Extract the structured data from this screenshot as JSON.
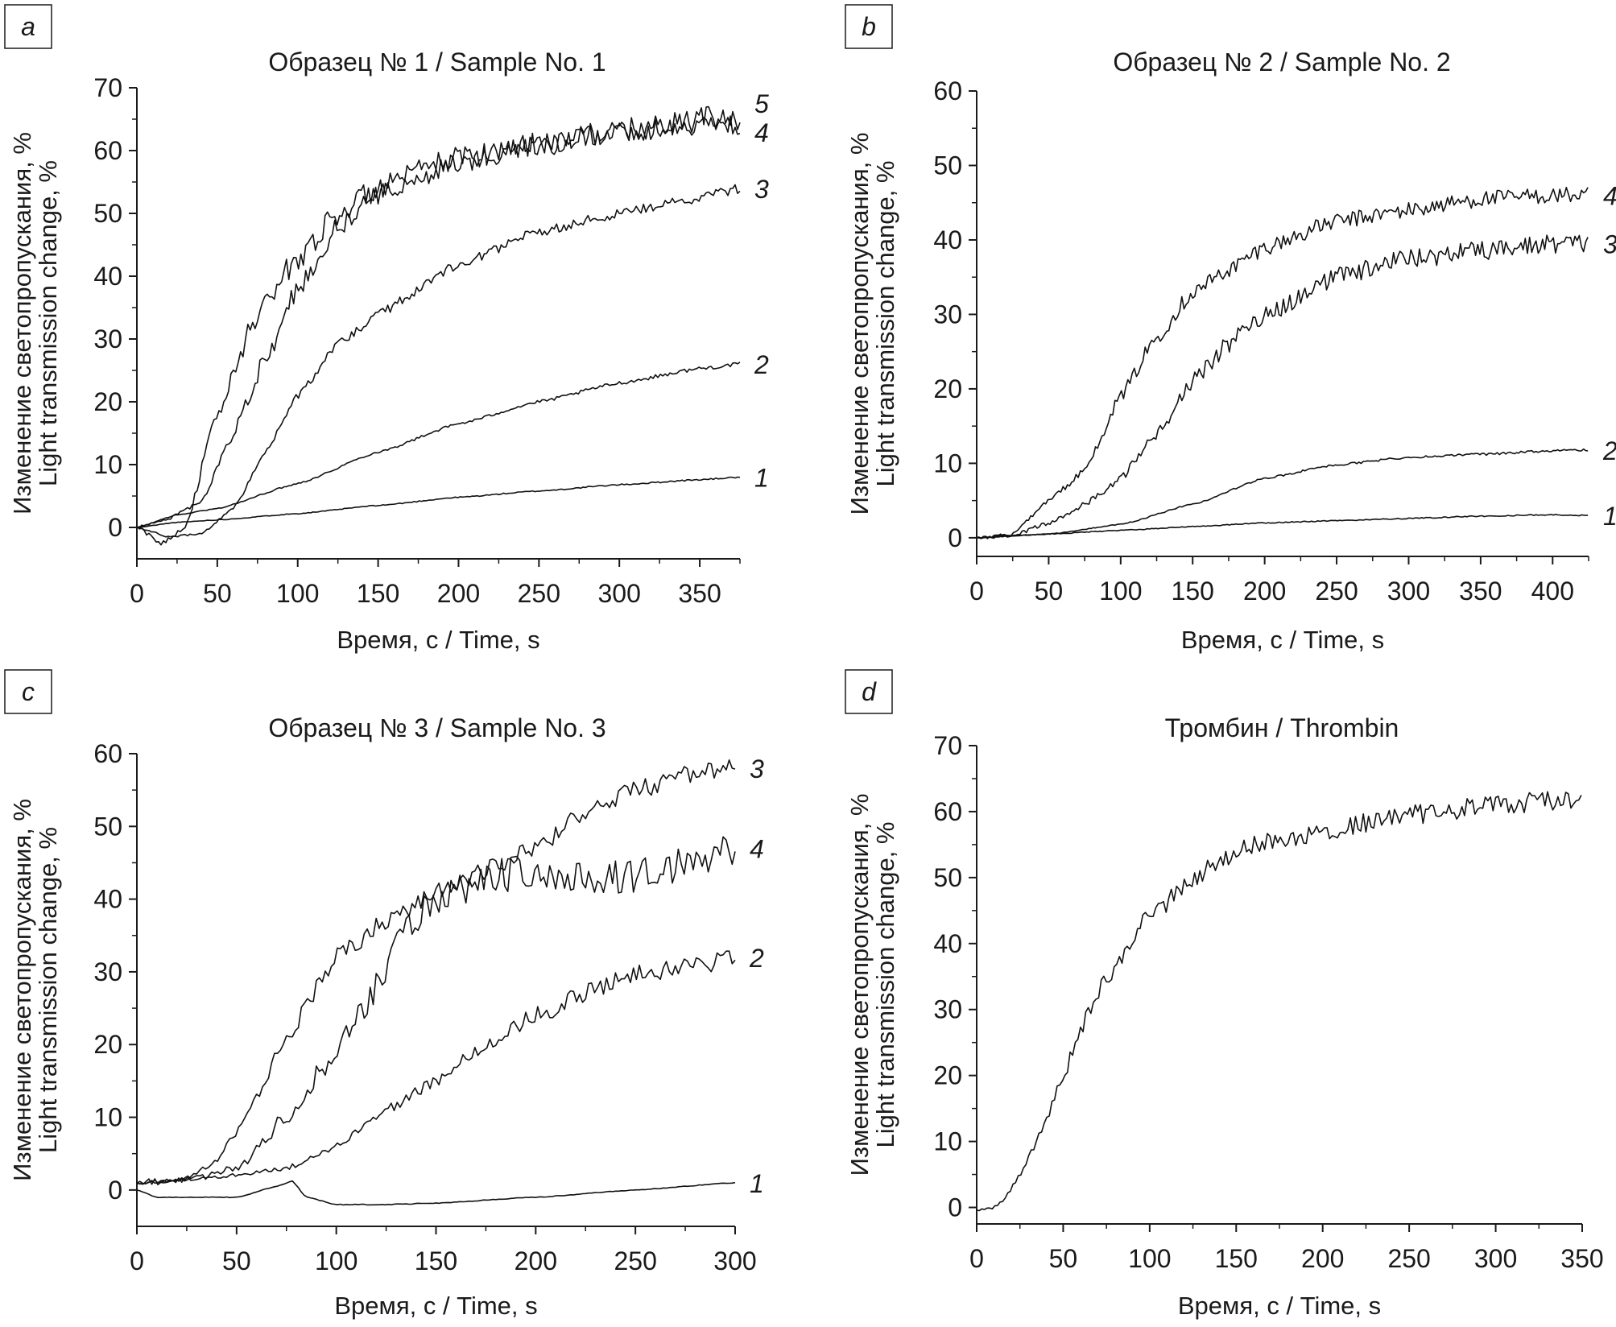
{
  "figure": {
    "panels": [
      "a",
      "b",
      "c",
      "d"
    ]
  },
  "chart_data": [
    {
      "id": "a",
      "type": "line",
      "panel_letter": "a",
      "title": "Образец № 1 / Sample No. 1",
      "xlabel": "Время, с / Time, s",
      "ylabel_line1": "Изменение светопропускания, %",
      "ylabel_line2": "Light transmission change, %",
      "xlim": [
        0,
        375
      ],
      "ylim": [
        -5,
        70
      ],
      "xticks": [
        0,
        50,
        100,
        150,
        200,
        250,
        300,
        350
      ],
      "yticks": [
        0,
        10,
        20,
        30,
        40,
        50,
        60,
        70
      ],
      "grid": false,
      "series": [
        {
          "name": "1",
          "x": [
            0,
            25,
            50,
            100,
            150,
            200,
            250,
            300,
            350,
            375
          ],
          "y": [
            0,
            0.8,
            1.2,
            2.2,
            3.5,
            4.8,
            5.8,
            6.8,
            7.6,
            8
          ],
          "noise": 0.3
        },
        {
          "name": "2",
          "x": [
            0,
            25,
            50,
            100,
            150,
            200,
            250,
            300,
            350,
            375
          ],
          "y": [
            0,
            2,
            3,
            7,
            12,
            16.5,
            20,
            23,
            25.3,
            26
          ],
          "noise": 0.35
        },
        {
          "name": "3",
          "x": [
            0,
            20,
            40,
            60,
            80,
            100,
            125,
            150,
            200,
            250,
            300,
            350,
            375
          ],
          "y": [
            0,
            -1.5,
            -1,
            3,
            12,
            21,
            29,
            34,
            42,
            47,
            50,
            52.5,
            54
          ],
          "noise": 0.8
        },
        {
          "name": "4",
          "x": [
            0,
            20,
            40,
            60,
            80,
            100,
            125,
            150,
            200,
            250,
            300,
            350,
            375
          ],
          "y": [
            0,
            1.5,
            4,
            15,
            27,
            38,
            48,
            53,
            58,
            61,
            63,
            64,
            64
          ],
          "noise": 1.6
        },
        {
          "name": "5",
          "x": [
            0,
            15,
            30,
            50,
            75,
            100,
            125,
            150,
            200,
            250,
            300,
            350,
            375
          ],
          "y": [
            0,
            -2.5,
            0,
            18,
            34,
            43,
            50,
            54,
            59,
            61,
            63,
            65,
            65
          ],
          "noise": 2.0
        }
      ]
    },
    {
      "id": "b",
      "type": "line",
      "panel_letter": "b",
      "title": "Образец № 2 / Sample No. 2",
      "xlabel": "Время, с / Time, s",
      "ylabel_line1": "Изменение светопропускания, %",
      "ylabel_line2": "Light transmission change, %",
      "xlim": [
        0,
        425
      ],
      "ylim": [
        -2.5,
        60
      ],
      "xticks": [
        0,
        50,
        100,
        150,
        200,
        250,
        300,
        350,
        400
      ],
      "yticks": [
        0,
        10,
        20,
        30,
        40,
        50,
        60
      ],
      "grid": false,
      "series": [
        {
          "name": "1",
          "x": [
            0,
            50,
            100,
            150,
            200,
            250,
            300,
            350,
            400,
            425
          ],
          "y": [
            0,
            0.5,
            1.0,
            1.5,
            2.0,
            2.3,
            2.6,
            2.9,
            3.1,
            3.0
          ],
          "noise": 0.3
        },
        {
          "name": "2",
          "x": [
            0,
            50,
            100,
            150,
            200,
            250,
            300,
            350,
            400,
            425
          ],
          "y": [
            0,
            0.5,
            1.8,
            4.5,
            8.0,
            9.8,
            10.8,
            11.2,
            11.7,
            11.8
          ],
          "noise": 0.3
        },
        {
          "name": "3",
          "x": [
            0,
            25,
            50,
            75,
            100,
            125,
            150,
            175,
            200,
            250,
            300,
            350,
            400,
            425
          ],
          "y": [
            0,
            0.3,
            2,
            4.5,
            8,
            14,
            21,
            26,
            30,
            35,
            37.5,
            38.5,
            39.5,
            39.5
          ],
          "noise": 1.3
        },
        {
          "name": "4",
          "x": [
            0,
            25,
            50,
            75,
            100,
            125,
            150,
            175,
            200,
            250,
            300,
            350,
            400,
            425
          ],
          "y": [
            0,
            0.5,
            5,
            9,
            19,
            27,
            33,
            36,
            39,
            42.5,
            44,
            45.5,
            46,
            46
          ],
          "noise": 1.1
        }
      ]
    },
    {
      "id": "c",
      "type": "line",
      "panel_letter": "c",
      "title": "Образец № 3 / Sample No. 3",
      "xlabel": "Время, с / Time, s",
      "ylabel_line1": "Изменение светопропускания, %",
      "ylabel_line2": "Light transmission change, %",
      "xlim": [
        0,
        300
      ],
      "ylim": [
        -5,
        60
      ],
      "xticks": [
        0,
        50,
        100,
        150,
        200,
        250,
        300
      ],
      "yticks": [
        0,
        10,
        20,
        30,
        40,
        50,
        60
      ],
      "grid": false,
      "series": [
        {
          "name": "1",
          "x": [
            0,
            10,
            30,
            50,
            70,
            78,
            85,
            100,
            125,
            150,
            200,
            250,
            300
          ],
          "y": [
            0,
            -1,
            -1,
            -1,
            0.5,
            1.2,
            -1,
            -2,
            -2,
            -1.8,
            -1,
            0,
            1
          ],
          "noise": 0.25
        },
        {
          "name": "2",
          "x": [
            0,
            25,
            50,
            75,
            100,
            125,
            150,
            175,
            200,
            225,
            250,
            275,
            300
          ],
          "y": [
            1,
            1.5,
            2,
            3,
            6,
            11,
            15,
            20,
            24,
            27,
            30,
            30.5,
            32
          ],
          "noise": 1.3
        },
        {
          "name": "3",
          "x": [
            0,
            25,
            40,
            50,
            60,
            75,
            100,
            125,
            150,
            175,
            200,
            225,
            250,
            275,
            300
          ],
          "y": [
            1,
            1.5,
            4,
            8,
            13,
            21,
            32,
            37,
            41,
            44,
            47,
            52,
            55,
            57,
            58
          ],
          "noise": 1.3
        },
        {
          "name": "4",
          "x": [
            0,
            30,
            50,
            75,
            100,
            125,
            135,
            150,
            175,
            200,
            225,
            250,
            275,
            300
          ],
          "y": [
            1,
            1.5,
            3,
            10,
            19,
            30,
            36,
            40,
            43,
            44,
            43,
            43,
            45,
            47
          ],
          "noise": 2.4
        }
      ]
    },
    {
      "id": "d",
      "type": "line",
      "panel_letter": "d",
      "title": "Тромбин / Thrombin",
      "xlabel": "Время, с / Time, s",
      "ylabel_line1": "Изменение светопропускания, %",
      "ylabel_line2": "Light transmission change, %",
      "xlim": [
        0,
        350
      ],
      "ylim": [
        -2.5,
        70
      ],
      "xticks": [
        0,
        50,
        100,
        150,
        200,
        250,
        300,
        350
      ],
      "yticks": [
        0,
        10,
        20,
        30,
        40,
        50,
        60,
        70
      ],
      "grid": false,
      "series": [
        {
          "name": "Thrombin",
          "x": [
            0,
            8,
            15,
            25,
            40,
            50,
            60,
            75,
            100,
            125,
            150,
            175,
            200,
            250,
            300,
            350
          ],
          "y": [
            -0.3,
            -0.3,
            1,
            5,
            13,
            20,
            27,
            35,
            44,
            50,
            54,
            56,
            57,
            59.5,
            61,
            62
          ],
          "noise": 1.5
        }
      ],
      "unlabeled_single_series": true
    }
  ]
}
